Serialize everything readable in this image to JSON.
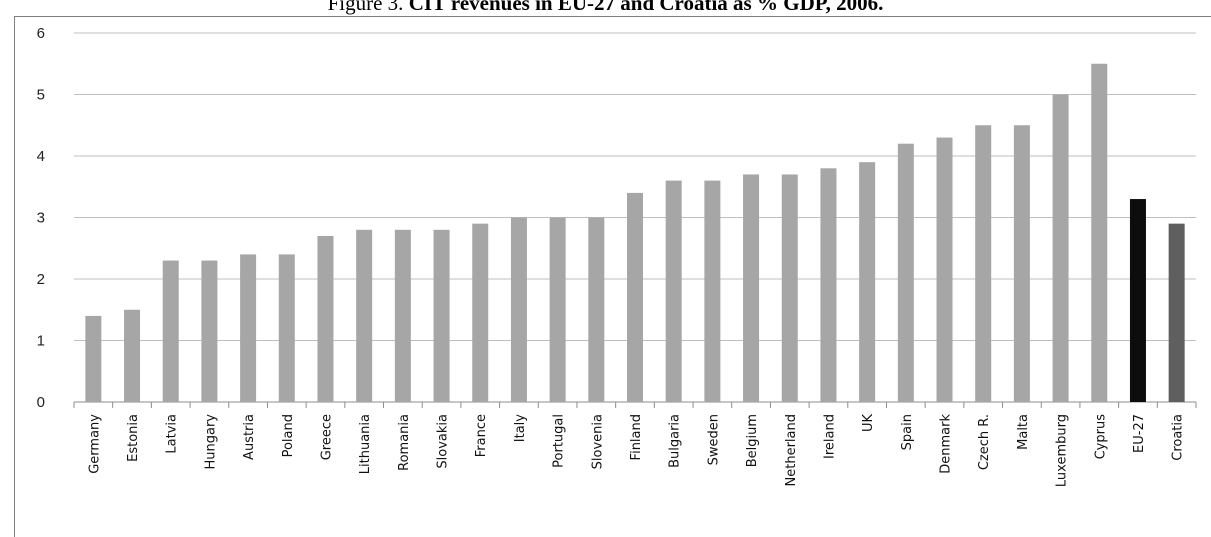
{
  "figure": {
    "title_prefix": "Figure 3.",
    "title_bold": "CIT revenues in EU-27 and Croatia as % GDP, 2006."
  },
  "chart_data": {
    "type": "bar",
    "title": "CIT revenues in EU-27 and Croatia as % GDP, 2006.",
    "xlabel": "",
    "ylabel": "",
    "ylim": [
      0,
      6
    ],
    "yticks": [
      0,
      1,
      2,
      3,
      4,
      5,
      6
    ],
    "grid": true,
    "legend": "none",
    "categories": [
      "Germany",
      "Estonia",
      "Latvia",
      "Hungary",
      "Austria",
      "Poland",
      "Greece",
      "Lithuania",
      "Romania",
      "Slovakia",
      "France",
      "Italy",
      "Portugal",
      "Slovenia",
      "Finland",
      "Bulgaria",
      "Sweden",
      "Belgium",
      "Netherland",
      "Ireland",
      "UK",
      "Spain",
      "Denmark",
      "Czech R.",
      "Malta",
      "Luxemburg",
      "Cyprus",
      "EU-27",
      "Croatia"
    ],
    "values": [
      1.4,
      1.5,
      2.3,
      2.3,
      2.4,
      2.4,
      2.7,
      2.8,
      2.8,
      2.8,
      2.9,
      3.0,
      3.0,
      3.0,
      3.4,
      3.6,
      3.6,
      3.7,
      3.7,
      3.8,
      3.9,
      4.2,
      4.3,
      4.5,
      4.5,
      5.0,
      5.5,
      3.3,
      2.9
    ],
    "colors": {
      "default": "#a6a6a6",
      "EU-27": "#0d0d0d",
      "Croatia": "#5f5f5f",
      "grid": "#bfbfbf",
      "axis": "#8c8c8c"
    }
  }
}
